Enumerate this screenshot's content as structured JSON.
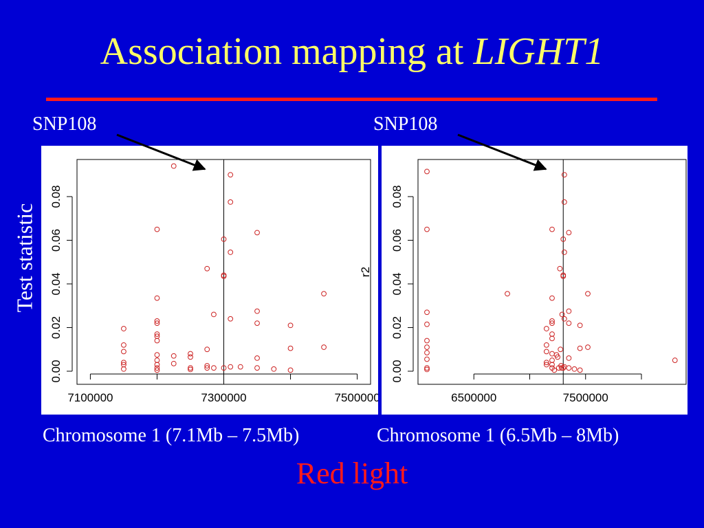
{
  "title": {
    "main": "Association mapping at ",
    "italic": "LIGHT1"
  },
  "y_title": "Test statistic",
  "snp_labels": [
    "SNP108",
    "SNP108"
  ],
  "x_captions": [
    "Chromosome 1 (7.1Mb – 7.5Mb)",
    "Chromosome 1 (6.5Mb – 8Mb)"
  ],
  "subtitle": "Red light",
  "colors": {
    "background": "#0000d4",
    "title": "#ffff66",
    "rule": "#ff1a1a",
    "points": "#cc2222",
    "subtitle": "#ff1a1a"
  },
  "chart_data": [
    {
      "type": "scatter",
      "xlabel": "",
      "ylabel": "",
      "xlim": [
        7080000,
        7520000
      ],
      "ylim": [
        -0.006,
        0.097
      ],
      "x_ticks": [
        7100000,
        7200000,
        7300000,
        7400000,
        7500000
      ],
      "x_tick_labels": [
        "7100000",
        "7300000",
        "7500000"
      ],
      "y_ticks": [
        0.0,
        0.02,
        0.04,
        0.06,
        0.08
      ],
      "y_tick_labels": [
        "0.00",
        "0.02",
        "0.04",
        "0.06",
        "0.08"
      ],
      "vline": 7300000,
      "annotation": "SNP108",
      "points": [
        [
          7150000,
          0.0195
        ],
        [
          7150000,
          0.012
        ],
        [
          7150000,
          0.009
        ],
        [
          7150000,
          0.004
        ],
        [
          7150000,
          0.003
        ],
        [
          7150000,
          0.001
        ],
        [
          7200000,
          0.065
        ],
        [
          7200000,
          0.0335
        ],
        [
          7200000,
          0.023
        ],
        [
          7200000,
          0.022
        ],
        [
          7200000,
          0.017
        ],
        [
          7200000,
          0.016
        ],
        [
          7200000,
          0.014
        ],
        [
          7200000,
          0.0075
        ],
        [
          7200000,
          0.005
        ],
        [
          7200000,
          0.003
        ],
        [
          7200000,
          0.0015
        ],
        [
          7200000,
          0.0005
        ],
        [
          7225000,
          0.094
        ],
        [
          7225000,
          0.007
        ],
        [
          7225000,
          0.0035
        ],
        [
          7250000,
          0.008
        ],
        [
          7250000,
          0.0065
        ],
        [
          7250000,
          0.0015
        ],
        [
          7250000,
          0.0008
        ],
        [
          7275000,
          0.047
        ],
        [
          7275000,
          0.01
        ],
        [
          7275000,
          0.0025
        ],
        [
          7275000,
          0.0015
        ],
        [
          7285000,
          0.026
        ],
        [
          7285000,
          0.0015
        ],
        [
          7300000,
          0.0605
        ],
        [
          7300000,
          0.044
        ],
        [
          7300000,
          0.0435
        ],
        [
          7300000,
          0.0015
        ],
        [
          7310000,
          0.09
        ],
        [
          7310000,
          0.0775
        ],
        [
          7310000,
          0.0545
        ],
        [
          7310000,
          0.024
        ],
        [
          7310000,
          0.002
        ],
        [
          7325000,
          0.002
        ],
        [
          7350000,
          0.0635
        ],
        [
          7350000,
          0.0275
        ],
        [
          7350000,
          0.022
        ],
        [
          7350000,
          0.006
        ],
        [
          7350000,
          0.0015
        ],
        [
          7375000,
          0.001
        ],
        [
          7400000,
          0.021
        ],
        [
          7400000,
          0.0105
        ],
        [
          7400000,
          0.0005
        ],
        [
          7450000,
          0.0355
        ],
        [
          7450000,
          0.011
        ]
      ]
    },
    {
      "type": "scatter",
      "xlabel": "",
      "ylabel": "r2",
      "xlim": [
        6000000,
        8400000
      ],
      "ylim": [
        -0.006,
        0.097
      ],
      "x_ticks": [
        6500000,
        7000000,
        7500000,
        8000000
      ],
      "x_tick_labels": [
        "6500000",
        "7500000"
      ],
      "y_ticks": [
        0.0,
        0.02,
        0.04,
        0.06,
        0.08
      ],
      "y_tick_labels": [
        "0.00",
        "0.02",
        "0.04",
        "0.06",
        "0.08"
      ],
      "vline": 7300000,
      "annotation": "SNP108",
      "points": [
        [
          6080000,
          0.0915
        ],
        [
          6080000,
          0.065
        ],
        [
          6080000,
          0.027
        ],
        [
          6080000,
          0.0215
        ],
        [
          6080000,
          0.014
        ],
        [
          6080000,
          0.011
        ],
        [
          6080000,
          0.0085
        ],
        [
          6080000,
          0.0055
        ],
        [
          6080000,
          0.0015
        ],
        [
          6080000,
          0.0008
        ],
        [
          6800000,
          0.0355
        ],
        [
          7150000,
          0.0195
        ],
        [
          7150000,
          0.012
        ],
        [
          7150000,
          0.009
        ],
        [
          7150000,
          0.004
        ],
        [
          7150000,
          0.003
        ],
        [
          7200000,
          0.065
        ],
        [
          7200000,
          0.0335
        ],
        [
          7200000,
          0.023
        ],
        [
          7200000,
          0.022
        ],
        [
          7200000,
          0.017
        ],
        [
          7200000,
          0.015
        ],
        [
          7200000,
          0.008
        ],
        [
          7200000,
          0.005
        ],
        [
          7200000,
          0.003
        ],
        [
          7200000,
          0.0015
        ],
        [
          7220000,
          0.0005
        ],
        [
          7240000,
          0.0075
        ],
        [
          7250000,
          0.0065
        ],
        [
          7260000,
          0.0015
        ],
        [
          7270000,
          0.047
        ],
        [
          7275000,
          0.01
        ],
        [
          7280000,
          0.0025
        ],
        [
          7285000,
          0.0015
        ],
        [
          7290000,
          0.026
        ],
        [
          7300000,
          0.0605
        ],
        [
          7300000,
          0.044
        ],
        [
          7300000,
          0.0435
        ],
        [
          7300000,
          0.0015
        ],
        [
          7310000,
          0.09
        ],
        [
          7310000,
          0.0775
        ],
        [
          7310000,
          0.0545
        ],
        [
          7310000,
          0.024
        ],
        [
          7310000,
          0.002
        ],
        [
          7350000,
          0.0635
        ],
        [
          7350000,
          0.0275
        ],
        [
          7350000,
          0.022
        ],
        [
          7350000,
          0.006
        ],
        [
          7350000,
          0.0015
        ],
        [
          7400000,
          0.001
        ],
        [
          7450000,
          0.021
        ],
        [
          7450000,
          0.0105
        ],
        [
          7450000,
          0.0005
        ],
        [
          7520000,
          0.0355
        ],
        [
          7520000,
          0.011
        ],
        [
          8300000,
          0.005
        ]
      ]
    }
  ]
}
